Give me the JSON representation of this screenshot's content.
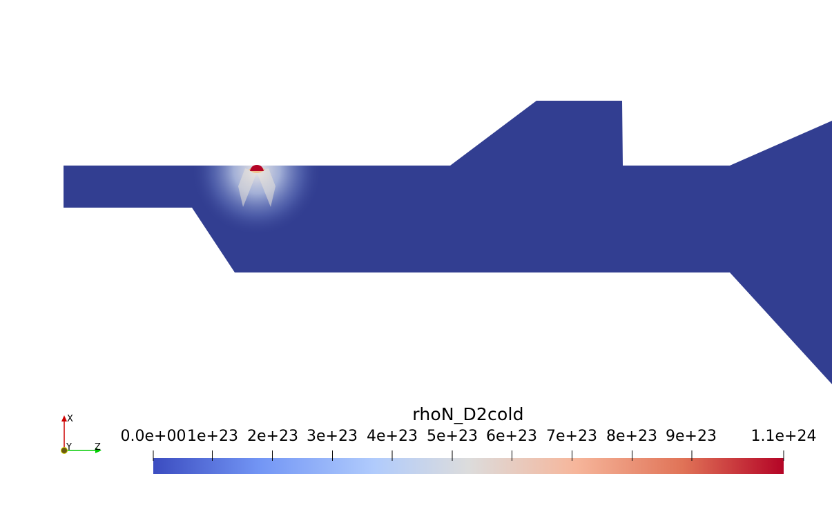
{
  "colorbar": {
    "title": "rhoN_D2cold",
    "labels": [
      "0.0e+00",
      "1e+23",
      "2e+23",
      "3e+23",
      "4e+23",
      "5e+23",
      "6e+23",
      "7e+23",
      "8e+23",
      "9e+23",
      "1.1e+24"
    ],
    "colors": [
      "#3b4cc0",
      "#7396f5",
      "#b0cbfc",
      "#dcdcdc",
      "#f6b69b",
      "#e07357",
      "#b40426"
    ]
  },
  "mesh": {
    "fill_color": "#323e91",
    "hotspot_color": "#b40426"
  },
  "orientation_axes": {
    "x_label": "X",
    "y_label": "Y",
    "z_label": "Z",
    "x_color": "#cc0000",
    "y_color": "#c8c800",
    "z_color": "#00cc00"
  }
}
